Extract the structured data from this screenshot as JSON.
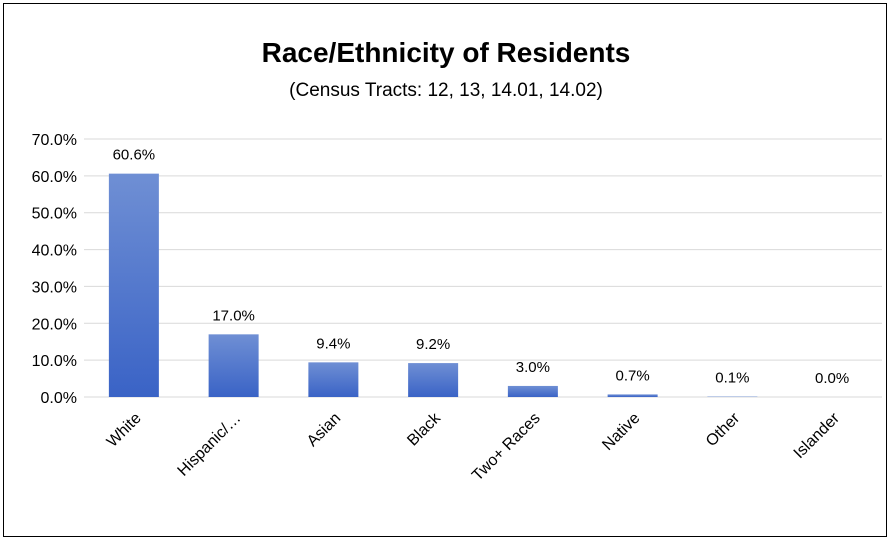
{
  "chart_data": {
    "type": "bar",
    "title": "Race/Ethnicity of Residents",
    "subtitle": "(Census Tracts: 12, 13, 14.01, 14.02)",
    "xlabel": "",
    "ylabel": "",
    "categories": [
      "White",
      "Hispanic/…",
      "Asian",
      "Black",
      "Two+ Races",
      "Native",
      "Other",
      "Islander"
    ],
    "values": [
      60.6,
      17.0,
      9.4,
      9.2,
      3.0,
      0.7,
      0.1,
      0.0
    ],
    "data_labels": [
      "60.6%",
      "17.0%",
      "9.4%",
      "9.2%",
      "3.0%",
      "0.7%",
      "0.1%",
      "0.0%"
    ],
    "ylim": [
      0,
      70
    ],
    "yticks": [
      0,
      10,
      20,
      30,
      40,
      50,
      60,
      70
    ],
    "ytick_labels": [
      "0.0%",
      "10.0%",
      "20.0%",
      "30.0%",
      "40.0%",
      "50.0%",
      "60.0%",
      "70.0%"
    ],
    "grid": true,
    "legend": "none",
    "bar_color_top": "#6f8fd4",
    "bar_color_bottom": "#3a63c6"
  }
}
